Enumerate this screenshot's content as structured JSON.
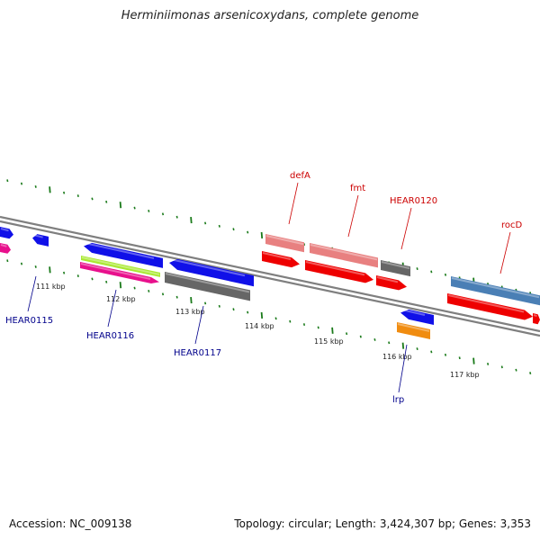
{
  "header": {
    "title": "Herminiimonas arsenicoxydans, complete genome"
  },
  "footer": {
    "accession": "Accession: NC_009138",
    "stats": "Topology: circular; Length: 3,424,307 bp; Genes: 3,353"
  },
  "colors": {
    "backbone": "#7f7f7f",
    "tick": "#1a7a1a",
    "label_top": "#cc0000",
    "label_bottom": "#00008b"
  },
  "tick_labels": [
    "111 kbp",
    "112 kbp",
    "113 kbp",
    "114 kbp",
    "115 kbp",
    "116 kbp",
    "117 kbp"
  ],
  "features": [
    {
      "name": "",
      "color": "#1010e8",
      "strand": "reverse"
    },
    {
      "name": "",
      "color": "#e8108c",
      "strand": "forward"
    },
    {
      "name": "",
      "color": "#1010e8",
      "strand": "reverse"
    },
    {
      "name": "",
      "color": "#1010e8",
      "strand": "reverse"
    },
    {
      "name": "",
      "color": "#a8e830",
      "strand": "forward"
    },
    {
      "name": "",
      "color": "#e8108c",
      "strand": "forward"
    },
    {
      "name": "",
      "color": "#1010e8",
      "strand": "reverse"
    },
    {
      "name": "",
      "color": "#666666",
      "strand": "reverse"
    },
    {
      "name": "defA",
      "color": "#e88080",
      "strand": "forward"
    },
    {
      "name": "",
      "color": "#ee0000",
      "strand": "forward"
    },
    {
      "name": "fmt",
      "color": "#e88080",
      "strand": "forward"
    },
    {
      "name": "",
      "color": "#ee0000",
      "strand": "forward"
    },
    {
      "name": "HEAR0120",
      "color": "#666666",
      "strand": "forward"
    },
    {
      "name": "",
      "color": "#ee0000",
      "strand": "forward"
    },
    {
      "name": "",
      "color": "#1010e8",
      "strand": "reverse"
    },
    {
      "name": "lrp",
      "color": "#f08c10",
      "strand": "forward"
    },
    {
      "name": "rocD",
      "color": "#4a7fb5",
      "strand": "forward"
    },
    {
      "name": "",
      "color": "#ee0000",
      "strand": "forward"
    },
    {
      "name": "",
      "color": "#ee0000",
      "strand": "forward"
    }
  ],
  "bottom_labels": [
    "HEAR0115",
    "HEAR0116",
    "HEAR0117"
  ]
}
